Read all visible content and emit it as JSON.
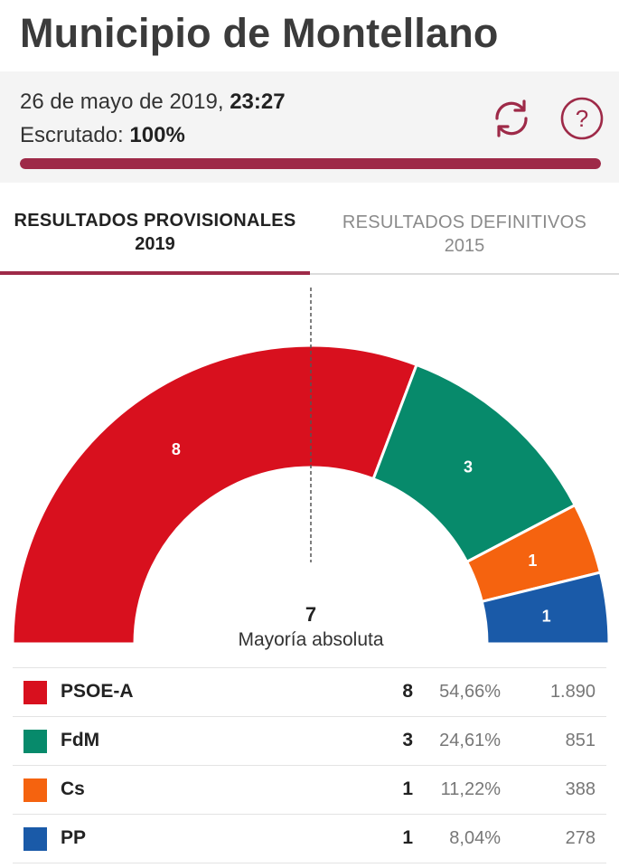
{
  "page": {
    "title": "Municipio de Montellano"
  },
  "status": {
    "date_prefix": "26 de mayo de 2019,",
    "time": "23:27",
    "scrutiny_label": "Escrutado:",
    "scrutiny_value": "100%",
    "progress_fraction": 1.0,
    "refresh_icon": "refresh-icon",
    "help_icon": "help-icon",
    "accent_color": "#9e2a48"
  },
  "tabs": [
    {
      "label": "RESULTADOS PROVISIONALES",
      "year": "2019",
      "active": true
    },
    {
      "label": "RESULTADOS DEFINITIVOS",
      "year": "2015",
      "active": false
    }
  ],
  "chart_data": {
    "type": "pie",
    "variant": "semicircle-parliament",
    "total_seats": 13,
    "majority": {
      "value": "7",
      "label": "Mayoría absoluta"
    },
    "series": [
      {
        "name": "PSOE-A",
        "seats": 8,
        "color": "#d8101e"
      },
      {
        "name": "FdM",
        "seats": 3,
        "color": "#078a6b"
      },
      {
        "name": "Cs",
        "seats": 1,
        "color": "#f5630f"
      },
      {
        "name": "PP",
        "seats": 1,
        "color": "#1a5aa8"
      }
    ]
  },
  "results": [
    {
      "party": "PSOE-A",
      "color": "#d8101e",
      "seats": "8",
      "percent": "54,66%",
      "votes": "1.890"
    },
    {
      "party": "FdM",
      "color": "#078a6b",
      "seats": "3",
      "percent": "24,61%",
      "votes": "851"
    },
    {
      "party": "Cs",
      "color": "#f5630f",
      "seats": "1",
      "percent": "11,22%",
      "votes": "388"
    },
    {
      "party": "PP",
      "color": "#1a5aa8",
      "seats": "1",
      "percent": "8,04%",
      "votes": "278"
    }
  ]
}
